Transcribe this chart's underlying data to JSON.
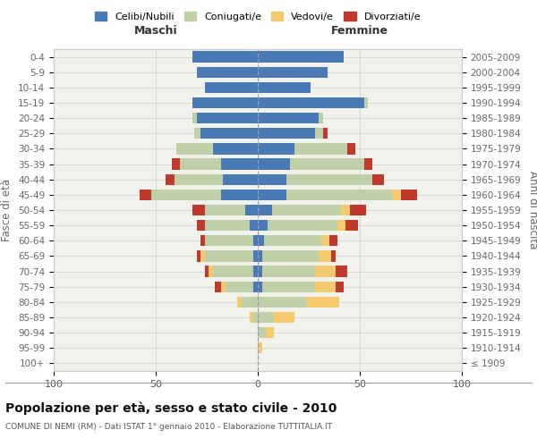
{
  "age_groups": [
    "100+",
    "95-99",
    "90-94",
    "85-89",
    "80-84",
    "75-79",
    "70-74",
    "65-69",
    "60-64",
    "55-59",
    "50-54",
    "45-49",
    "40-44",
    "35-39",
    "30-34",
    "25-29",
    "20-24",
    "15-19",
    "10-14",
    "5-9",
    "0-4"
  ],
  "birth_years": [
    "≤ 1909",
    "1910-1914",
    "1915-1919",
    "1920-1924",
    "1925-1929",
    "1930-1934",
    "1935-1939",
    "1940-1944",
    "1945-1949",
    "1950-1954",
    "1955-1959",
    "1960-1964",
    "1965-1969",
    "1970-1974",
    "1975-1979",
    "1980-1984",
    "1985-1989",
    "1990-1994",
    "1995-1999",
    "2000-2004",
    "2005-2009"
  ],
  "maschi_celibi": [
    0,
    0,
    0,
    0,
    0,
    2,
    2,
    2,
    2,
    4,
    6,
    18,
    17,
    18,
    22,
    28,
    30,
    32,
    26,
    30,
    32
  ],
  "maschi_coniugati": [
    0,
    0,
    0,
    2,
    8,
    14,
    20,
    24,
    24,
    22,
    20,
    34,
    24,
    20,
    18,
    3,
    2,
    0,
    0,
    0,
    0
  ],
  "maschi_vedovi": [
    0,
    0,
    0,
    2,
    2,
    2,
    2,
    2,
    0,
    0,
    0,
    0,
    0,
    0,
    0,
    0,
    0,
    0,
    0,
    0,
    0
  ],
  "maschi_divorziati": [
    0,
    0,
    0,
    0,
    0,
    3,
    2,
    2,
    2,
    4,
    6,
    6,
    4,
    4,
    0,
    0,
    0,
    0,
    0,
    0,
    0
  ],
  "femmine_nubili": [
    0,
    0,
    0,
    0,
    0,
    2,
    2,
    2,
    3,
    5,
    7,
    14,
    14,
    16,
    18,
    28,
    30,
    52,
    26,
    34,
    42
  ],
  "femmine_coniugate": [
    0,
    0,
    4,
    8,
    24,
    26,
    26,
    28,
    28,
    34,
    34,
    52,
    42,
    36,
    26,
    4,
    2,
    2,
    0,
    0,
    0
  ],
  "femmine_vedove": [
    0,
    2,
    4,
    10,
    16,
    10,
    10,
    6,
    4,
    4,
    4,
    4,
    0,
    0,
    0,
    0,
    0,
    0,
    0,
    0,
    0
  ],
  "femmine_divorziate": [
    0,
    0,
    0,
    0,
    0,
    4,
    6,
    2,
    4,
    6,
    8,
    8,
    6,
    4,
    4,
    2,
    0,
    0,
    0,
    0,
    0
  ],
  "col_celibi": "#4a7ab5",
  "col_coniugati": "#bfcfa8",
  "col_vedovi": "#f5c96e",
  "col_divorziati": "#c0392b",
  "xlim": 100,
  "title": "Popolazione per età, sesso e stato civile - 2010",
  "subtitle": "COMUNE DI NEMI (RM) - Dati ISTAT 1° gennaio 2010 - Elaborazione TUTTITALIA.IT",
  "ylabel_left": "Fasce di età",
  "ylabel_right": "Anni di nascita",
  "label_maschi": "Maschi",
  "label_femmine": "Femmine",
  "bg_color": "#f2f2ec",
  "grid_color": "#cccccc",
  "legend_labels": [
    "Celibi/Nubili",
    "Coniugati/e",
    "Vedovi/e",
    "Divorziati/e"
  ]
}
